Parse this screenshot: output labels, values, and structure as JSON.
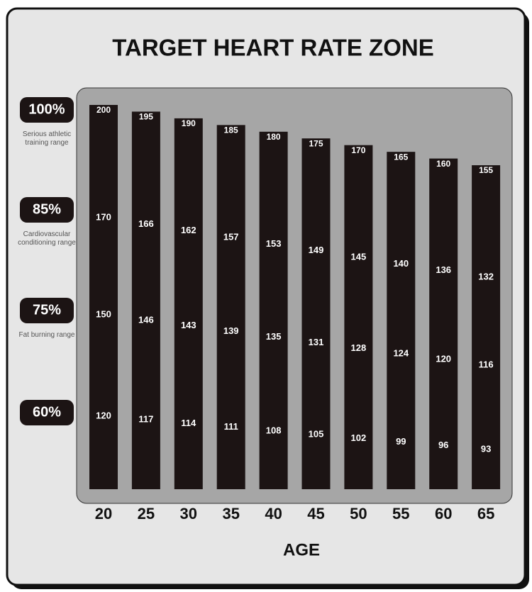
{
  "chart_data": {
    "type": "bar",
    "title": "TARGET HEART RATE ZONE",
    "x_label": "AGE",
    "categories": [
      "20",
      "25",
      "30",
      "35",
      "40",
      "45",
      "50",
      "55",
      "60",
      "65"
    ],
    "series": [
      {
        "name": "100%",
        "description": "Serious athletic training range",
        "color": "#1c1414",
        "values": [
          200,
          195,
          190,
          185,
          180,
          175,
          170,
          165,
          160,
          155
        ]
      },
      {
        "name": "85%",
        "description": "Cardiovascular conditioning range",
        "values": [
          170,
          166,
          162,
          157,
          153,
          149,
          145,
          140,
          136,
          132
        ]
      },
      {
        "name": "75%",
        "description": "Fat burning range",
        "values": [
          150,
          146,
          143,
          139,
          135,
          131,
          128,
          124,
          120,
          116
        ]
      },
      {
        "name": "60%",
        "values": [
          120,
          117,
          114,
          111,
          108,
          105,
          102,
          99,
          96,
          93
        ]
      }
    ]
  }
}
